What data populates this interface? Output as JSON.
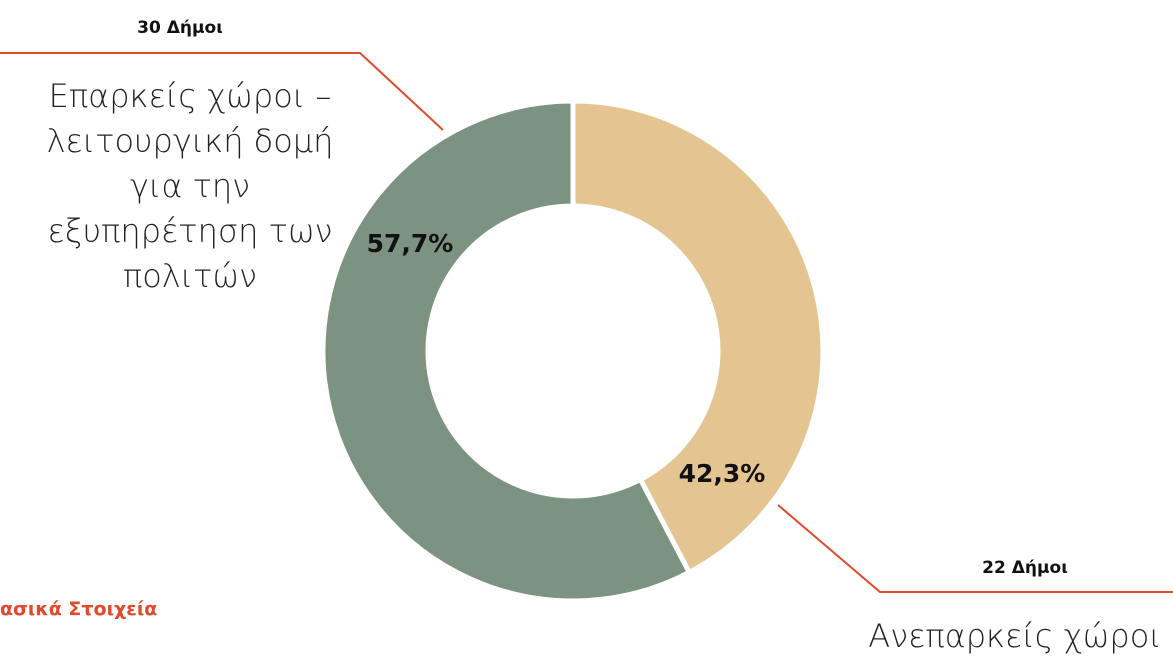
{
  "chart_data": {
    "type": "pie",
    "donut": true,
    "categories": [
      "Επαρκείς χώροι – λειτουργική δομή για την εξυπηρέτηση των πολιτών",
      "Ανεπαρκείς χώροι"
    ],
    "values": [
      57.7,
      42.3
    ],
    "value_labels": [
      "57,7%",
      "42,3%"
    ],
    "annotations": [
      "30 Δήμοι",
      "22 Δήμοι"
    ],
    "colors": [
      "#7b9380",
      "#e4c592"
    ]
  },
  "section_heading": "ασικά Στοιχεία"
}
